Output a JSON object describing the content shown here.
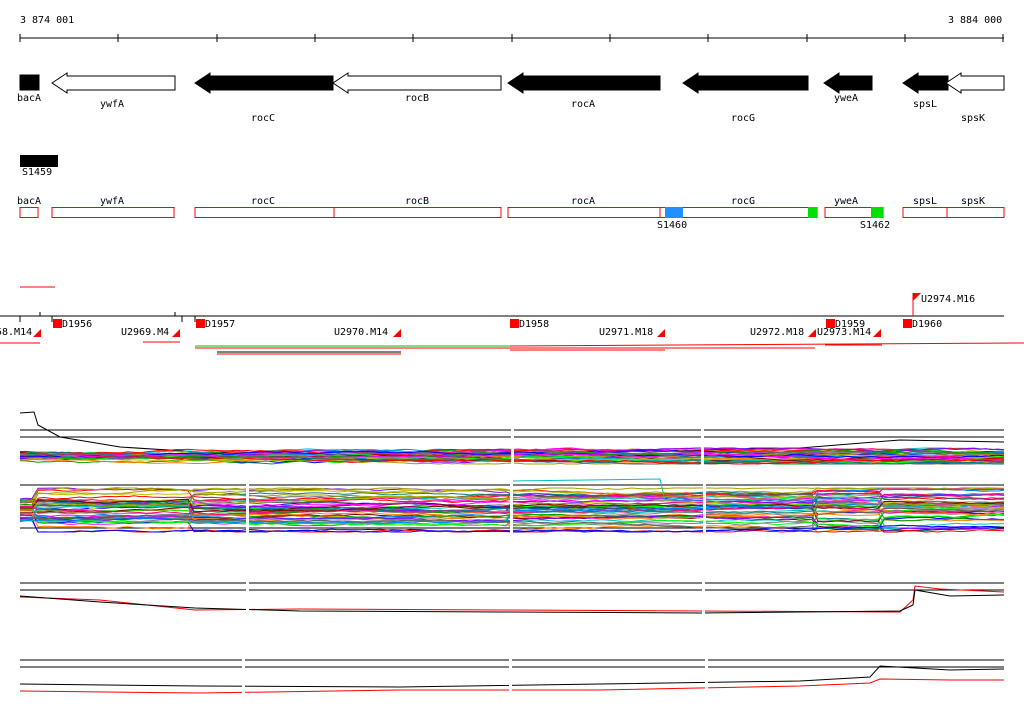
{
  "ruler": {
    "start_label": "3 874 001",
    "end_label": "3 884 000"
  },
  "genes": [
    {
      "label": "bacA",
      "strand": "+",
      "fill": "black"
    },
    {
      "label": "ywfA",
      "strand": "-",
      "fill": "white"
    },
    {
      "label": "rocC",
      "strand": "-",
      "fill": "black"
    },
    {
      "label": "rocB",
      "strand": "-",
      "fill": "white"
    },
    {
      "label": "rocA",
      "strand": "-",
      "fill": "black"
    },
    {
      "label": "rocG",
      "strand": "-",
      "fill": "black"
    },
    {
      "label": "yweA",
      "strand": "-",
      "fill": "black"
    },
    {
      "label": "spsL",
      "strand": "-",
      "fill": "black"
    },
    {
      "label": "spsK",
      "strand": "-",
      "fill": "white"
    }
  ],
  "segment_bar": {
    "label": "S1459"
  },
  "region_boxes": [
    {
      "label": "bacA"
    },
    {
      "label": "ywfA"
    },
    {
      "label": "rocC"
    },
    {
      "label": "rocB"
    },
    {
      "label": "rocA"
    },
    {
      "label": "rocG"
    },
    {
      "label": "yweA"
    },
    {
      "label": "spsL"
    },
    {
      "label": "spsK"
    }
  ],
  "segment_markers": [
    {
      "label": "S1460",
      "color": "#1e90ff"
    },
    {
      "label": "S1462",
      "color": "#00e000"
    }
  ],
  "extra_marker_color": "#00e000",
  "promoters": [
    {
      "label": "D1956"
    },
    {
      "label": "D1957"
    },
    {
      "label": "D1958"
    },
    {
      "label": "D1959"
    },
    {
      "label": "D1960"
    }
  ],
  "terminators": [
    {
      "label": "58.M14"
    },
    {
      "label": "U2969.M4"
    },
    {
      "label": "U2970.M14"
    },
    {
      "label": "U2971.M18"
    },
    {
      "label": "U2972.M18"
    },
    {
      "label": "U2973.M14"
    },
    {
      "label": "U2974.M16"
    }
  ],
  "colors": {
    "feature_red": "#ff0000",
    "axis": "#000000",
    "green": "#00c000",
    "blue_track": "#1e90ff"
  }
}
